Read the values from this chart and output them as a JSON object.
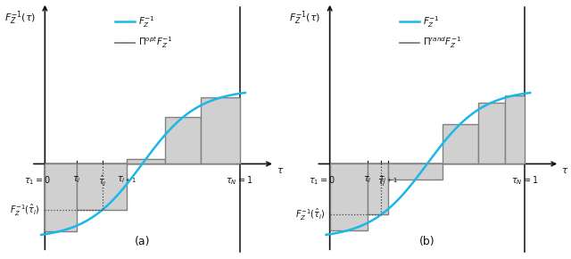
{
  "fig_width": 6.4,
  "fig_height": 2.9,
  "dpi": 100,
  "background": "#ffffff",
  "panels": [
    {
      "label": "(a)",
      "legend_line2_text": "opt",
      "tau_i": 0.165,
      "tau_hat_i": 0.295,
      "tau_i1": 0.42,
      "steps_a": [
        [
          0.0,
          0.165
        ],
        [
          0.165,
          0.42
        ],
        [
          0.42,
          0.615
        ],
        [
          0.615,
          0.8
        ],
        [
          0.8,
          1.0
        ]
      ],
      "mids_a": [
        0.083,
        0.295,
        0.52,
        0.71,
        0.9
      ]
    },
    {
      "label": "(b)",
      "legend_line2_text": "rand",
      "tau_i": 0.195,
      "tau_hat_i": 0.265,
      "tau_i1": 0.3,
      "steps_b": [
        [
          0.0,
          0.195
        ],
        [
          0.195,
          0.3
        ],
        [
          0.3,
          0.58
        ],
        [
          0.58,
          0.76
        ],
        [
          0.76,
          0.9
        ],
        [
          0.9,
          1.0
        ]
      ],
      "mids_b": [
        0.098,
        0.265,
        0.44,
        0.67,
        0.83,
        0.95
      ]
    }
  ],
  "curve_color": "#1ab8e8",
  "curve_lw": 1.8,
  "step_color": "#808080",
  "step_fill": "#d0d0d0",
  "step_lw": 1.0,
  "dotted_color": "#444444",
  "axis_color": "#111111",
  "text_color": "#111111",
  "xmin": -0.1,
  "xmax": 1.18,
  "ymin": -0.62,
  "ymax": 1.08,
  "fs_tick": 7.0,
  "fs_axis_label": 8.0,
  "fs_legend": 7.5,
  "fs_subfig": 9.0
}
